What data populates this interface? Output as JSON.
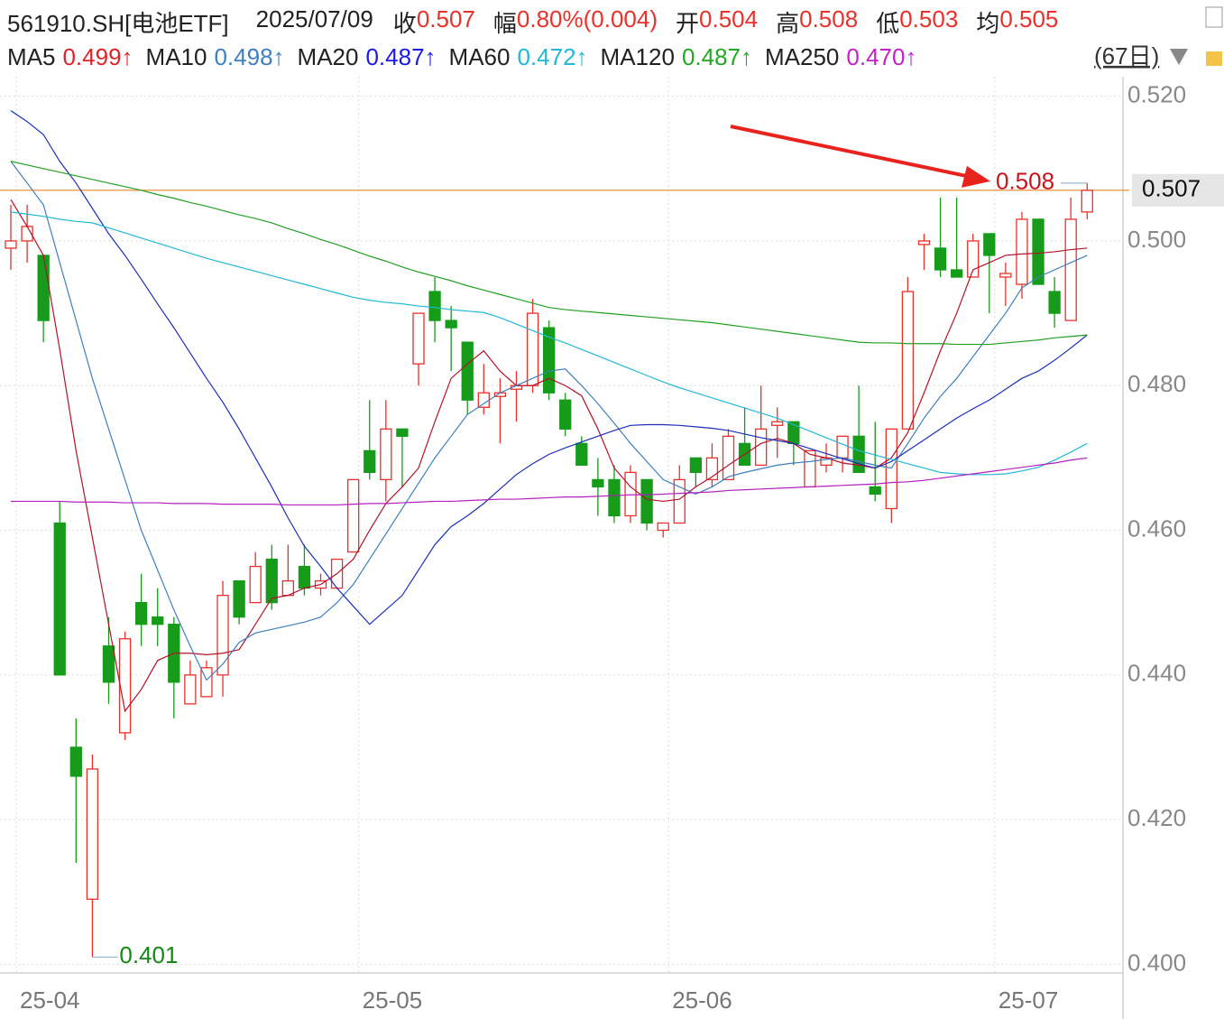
{
  "chart_data": {
    "type": "candlestick",
    "header": {
      "code": "561910.SH[电池ETF]",
      "date": "2025/07/09",
      "quote": [
        {
          "label": "收",
          "value": "0.507"
        },
        {
          "label": "幅",
          "value": "0.80%(0.004)"
        },
        {
          "label": "开",
          "value": "0.504"
        },
        {
          "label": "高",
          "value": "0.508"
        },
        {
          "label": "低",
          "value": "0.503"
        },
        {
          "label": "均",
          "value": "0.505"
        }
      ]
    },
    "period": "(67日)",
    "up_color": "#e8312a",
    "down_color": "#169b1a",
    "grid": true,
    "ylim": [
      0.3988,
      0.5227
    ],
    "yticks": [
      {
        "value": 0.4,
        "label": "0.400"
      },
      {
        "value": 0.42,
        "label": "0.420"
      },
      {
        "value": 0.44,
        "label": "0.440"
      },
      {
        "value": 0.46,
        "label": "0.460"
      },
      {
        "value": 0.48,
        "label": "0.480"
      },
      {
        "value": 0.5,
        "label": "0.500"
      },
      {
        "value": 0.52,
        "label": "0.520"
      }
    ],
    "categories": [
      "25-04",
      null,
      null,
      null,
      null,
      null,
      null,
      null,
      null,
      null,
      null,
      null,
      null,
      null,
      null,
      null,
      null,
      null,
      null,
      null,
      null,
      "25-05",
      null,
      null,
      null,
      null,
      null,
      null,
      null,
      null,
      null,
      null,
      null,
      null,
      null,
      null,
      null,
      null,
      null,
      null,
      "25-06",
      null,
      null,
      null,
      null,
      null,
      null,
      null,
      null,
      null,
      null,
      null,
      null,
      null,
      null,
      null,
      null,
      null,
      null,
      null,
      "25-07",
      null,
      null,
      null,
      null,
      null,
      null
    ],
    "ohlc": [
      [
        0.499,
        0.505,
        0.496,
        0.5
      ],
      [
        0.5,
        0.505,
        0.497,
        0.502
      ],
      [
        0.498,
        0.498,
        0.486,
        0.489
      ],
      [
        0.461,
        0.464,
        0.44,
        0.44
      ],
      [
        0.43,
        0.434,
        0.414,
        0.426
      ],
      [
        0.409,
        0.429,
        0.401,
        0.427
      ],
      [
        0.444,
        0.448,
        0.436,
        0.439
      ],
      [
        0.432,
        0.446,
        0.431,
        0.445
      ],
      [
        0.45,
        0.454,
        0.444,
        0.447
      ],
      [
        0.448,
        0.452,
        0.444,
        0.447
      ],
      [
        0.447,
        0.448,
        0.434,
        0.439
      ],
      [
        0.436,
        0.442,
        0.436,
        0.44
      ],
      [
        0.437,
        0.442,
        0.437,
        0.441
      ],
      [
        0.44,
        0.453,
        0.437,
        0.451
      ],
      [
        0.453,
        0.453,
        0.447,
        0.448
      ],
      [
        0.45,
        0.457,
        0.45,
        0.455
      ],
      [
        0.456,
        0.458,
        0.449,
        0.45
      ],
      [
        0.451,
        0.458,
        0.451,
        0.453
      ],
      [
        0.455,
        0.458,
        0.451,
        0.452
      ],
      [
        0.452,
        0.454,
        0.451,
        0.453
      ],
      [
        0.452,
        0.456,
        0.452,
        0.456
      ],
      [
        0.457,
        0.467,
        0.457,
        0.467
      ],
      [
        0.471,
        0.478,
        0.467,
        0.468
      ],
      [
        0.467,
        0.478,
        0.464,
        0.474
      ],
      [
        0.474,
        0.474,
        0.466,
        0.473
      ],
      [
        0.483,
        0.49,
        0.48,
        0.49
      ],
      [
        0.493,
        0.495,
        0.486,
        0.489
      ],
      [
        0.489,
        0.491,
        0.482,
        0.488
      ],
      [
        0.486,
        0.486,
        0.476,
        0.478
      ],
      [
        0.477,
        0.483,
        0.476,
        0.479
      ],
      [
        0.4785,
        0.481,
        0.472,
        0.479
      ],
      [
        0.4795,
        0.482,
        0.475,
        0.48
      ],
      [
        0.48,
        0.492,
        0.479,
        0.49
      ],
      [
        0.488,
        0.489,
        0.478,
        0.479
      ],
      [
        0.478,
        0.479,
        0.473,
        0.474
      ],
      [
        0.472,
        0.473,
        0.469,
        0.469
      ],
      [
        0.467,
        0.47,
        0.462,
        0.466
      ],
      [
        0.467,
        0.469,
        0.461,
        0.462
      ],
      [
        0.462,
        0.469,
        0.461,
        0.468
      ],
      [
        0.467,
        0.467,
        0.46,
        0.461
      ],
      [
        0.46,
        0.461,
        0.459,
        0.461
      ],
      [
        0.461,
        0.469,
        0.461,
        0.467
      ],
      [
        0.47,
        0.47,
        0.466,
        0.468
      ],
      [
        0.467,
        0.472,
        0.466,
        0.47
      ],
      [
        0.467,
        0.474,
        0.467,
        0.473
      ],
      [
        0.472,
        0.477,
        0.469,
        0.469
      ],
      [
        0.469,
        0.48,
        0.469,
        0.474
      ],
      [
        0.4745,
        0.477,
        0.47,
        0.475
      ],
      [
        0.475,
        0.475,
        0.469,
        0.472
      ],
      [
        0.466,
        0.471,
        0.466,
        0.471
      ],
      [
        0.469,
        0.472,
        0.468,
        0.47
      ],
      [
        0.47,
        0.473,
        0.468,
        0.473
      ],
      [
        0.473,
        0.48,
        0.468,
        0.468
      ],
      [
        0.466,
        0.475,
        0.464,
        0.465
      ],
      [
        0.463,
        0.474,
        0.461,
        0.474
      ],
      [
        0.474,
        0.495,
        0.474,
        0.493
      ],
      [
        0.4995,
        0.501,
        0.496,
        0.5
      ],
      [
        0.499,
        0.506,
        0.495,
        0.496
      ],
      [
        0.496,
        0.506,
        0.495,
        0.495
      ],
      [
        0.495,
        0.501,
        0.495,
        0.5
      ],
      [
        0.501,
        0.501,
        0.49,
        0.498
      ],
      [
        0.495,
        0.497,
        0.491,
        0.4955
      ],
      [
        0.494,
        0.504,
        0.492,
        0.503
      ],
      [
        0.503,
        0.503,
        0.494,
        0.494
      ],
      [
        0.493,
        0.495,
        0.488,
        0.49
      ],
      [
        0.489,
        0.506,
        0.489,
        0.503
      ],
      [
        0.504,
        0.508,
        0.503,
        0.507
      ]
    ],
    "series": [
      {
        "name": "MA5",
        "legend_value": "0.499↑",
        "color": "#b3122a",
        "text_color": "#e0222a",
        "values": [
          0.5057,
          0.502,
          0.498,
          0.485,
          0.471,
          0.459,
          0.447,
          0.435,
          0.438,
          0.442,
          0.443,
          0.443,
          0.4428,
          0.443,
          0.4435,
          0.447,
          0.4506,
          0.451,
          0.452,
          0.4525,
          0.454,
          0.456,
          0.46,
          0.4637,
          0.466,
          0.4686,
          0.475,
          0.481,
          0.483,
          0.4848,
          0.482,
          0.48,
          0.48,
          0.481,
          0.48,
          0.4786,
          0.474,
          0.4686,
          0.466,
          0.4643,
          0.464,
          0.4643,
          0.466,
          0.4674,
          0.469,
          0.4705,
          0.472,
          0.4727,
          0.472,
          0.4705,
          0.47,
          0.4693,
          0.469,
          0.4686,
          0.47,
          0.4735,
          0.479,
          0.4848,
          0.49,
          0.496,
          0.497,
          0.498,
          0.4982,
          0.4983,
          0.4985,
          0.4988,
          0.499
        ]
      },
      {
        "name": "MA10",
        "legend_value": "0.498↑",
        "color": "#3f7fbf",
        "text_color": "#3f7fbf",
        "values": [
          0.511,
          0.508,
          0.505,
          0.497,
          0.489,
          0.481,
          0.474,
          0.467,
          0.46,
          0.4545,
          0.449,
          0.444,
          0.4393,
          0.4415,
          0.4445,
          0.4458,
          0.4463,
          0.4468,
          0.4473,
          0.448,
          0.45,
          0.4525,
          0.456,
          0.4595,
          0.463,
          0.4665,
          0.47,
          0.473,
          0.476,
          0.4775,
          0.479,
          0.48,
          0.481,
          0.482,
          0.4823,
          0.48,
          0.4775,
          0.4748,
          0.472,
          0.4695,
          0.467,
          0.466,
          0.465,
          0.466,
          0.4674,
          0.468,
          0.4685,
          0.469,
          0.4693,
          0.4695,
          0.4698,
          0.47,
          0.4695,
          0.469,
          0.4686,
          0.472,
          0.4755,
          0.4785,
          0.481,
          0.484,
          0.487,
          0.49,
          0.4935,
          0.495,
          0.496,
          0.497,
          0.498
        ]
      },
      {
        "name": "MA20",
        "legend_value": "0.487↑",
        "color": "#1a2fb8",
        "text_color": "#1a1aee",
        "values": [
          0.518,
          0.5165,
          0.5147,
          0.511,
          0.508,
          0.5045,
          0.501,
          0.498,
          0.4947,
          0.4913,
          0.488,
          0.4845,
          0.481,
          0.4777,
          0.474,
          0.47,
          0.466,
          0.4617,
          0.4578,
          0.455,
          0.452,
          0.4495,
          0.447,
          0.449,
          0.451,
          0.4545,
          0.458,
          0.4605,
          0.462,
          0.4637,
          0.4657,
          0.4677,
          0.4692,
          0.4705,
          0.4714,
          0.4722,
          0.473,
          0.4738,
          0.4745,
          0.4746,
          0.4746,
          0.4745,
          0.4743,
          0.4741,
          0.4738,
          0.4733,
          0.4728,
          0.4724,
          0.472,
          0.4713,
          0.4706,
          0.4699,
          0.4692,
          0.4686,
          0.4695,
          0.471,
          0.4725,
          0.474,
          0.4755,
          0.4768,
          0.478,
          0.4795,
          0.481,
          0.482,
          0.4835,
          0.4852,
          0.487
        ]
      },
      {
        "name": "MA60",
        "legend_value": "0.472↑",
        "color": "#22b8d6",
        "text_color": "#22b8d6",
        "values": [
          0.504,
          0.5037,
          0.5034,
          0.503,
          0.5027,
          0.5025,
          0.5018,
          0.5011,
          0.5004,
          0.4997,
          0.499,
          0.4983,
          0.4976,
          0.497,
          0.4964,
          0.4958,
          0.4952,
          0.4946,
          0.494,
          0.4934,
          0.4928,
          0.4922,
          0.4918,
          0.4915,
          0.4913,
          0.491,
          0.4908,
          0.4905,
          0.4903,
          0.4901,
          0.4894,
          0.4885,
          0.4876,
          0.4867,
          0.4859,
          0.485,
          0.4841,
          0.4832,
          0.4823,
          0.4814,
          0.4805,
          0.4797,
          0.479,
          0.4783,
          0.4776,
          0.4769,
          0.4762,
          0.4755,
          0.4746,
          0.4737,
          0.4728,
          0.4719,
          0.471,
          0.4704,
          0.4698,
          0.4692,
          0.4686,
          0.468,
          0.4678,
          0.4677,
          0.4677,
          0.4678,
          0.4682,
          0.4687,
          0.4697,
          0.4708,
          0.472
        ]
      },
      {
        "name": "MA120",
        "legend_value": "0.487↑",
        "color": "#23a023",
        "text_color": "#23a823",
        "values": [
          0.511,
          0.5105,
          0.51,
          0.5095,
          0.509,
          0.5085,
          0.508,
          0.5075,
          0.507,
          0.5064,
          0.5059,
          0.5053,
          0.5048,
          0.5042,
          0.5036,
          0.5031,
          0.5025,
          0.5017,
          0.501,
          0.5002,
          0.4995,
          0.4987,
          0.4979,
          0.4972,
          0.4964,
          0.4957,
          0.4951,
          0.4945,
          0.4938,
          0.4932,
          0.4926,
          0.492,
          0.4914,
          0.4908,
          0.4905,
          0.4903,
          0.4901,
          0.4899,
          0.4897,
          0.4895,
          0.4893,
          0.4891,
          0.4889,
          0.4887,
          0.4884,
          0.4881,
          0.4878,
          0.4875,
          0.4872,
          0.4869,
          0.4866,
          0.4863,
          0.486,
          0.4859,
          0.4859,
          0.4858,
          0.4858,
          0.4858,
          0.4857,
          0.4857,
          0.4857,
          0.4859,
          0.4861,
          0.4863,
          0.4866,
          0.4868,
          0.487
        ]
      },
      {
        "name": "MA250",
        "legend_value": "0.470↑",
        "color": "#b51fc0",
        "text_color": "#c81ecb",
        "values": [
          0.464,
          0.464,
          0.464,
          0.464,
          0.4639,
          0.4639,
          0.4639,
          0.4638,
          0.4638,
          0.4638,
          0.4637,
          0.4637,
          0.4637,
          0.4636,
          0.4636,
          0.4636,
          0.4636,
          0.4635,
          0.4635,
          0.4635,
          0.4635,
          0.4636,
          0.4637,
          0.4637,
          0.4638,
          0.4639,
          0.464,
          0.464,
          0.4641,
          0.4642,
          0.4643,
          0.4643,
          0.4644,
          0.4645,
          0.4646,
          0.4646,
          0.4647,
          0.4648,
          0.4649,
          0.4649,
          0.465,
          0.4651,
          0.4652,
          0.4653,
          0.4655,
          0.4656,
          0.4657,
          0.4658,
          0.4659,
          0.466,
          0.4661,
          0.4662,
          0.4663,
          0.4664,
          0.4666,
          0.4667,
          0.4669,
          0.4672,
          0.4675,
          0.4678,
          0.4681,
          0.4684,
          0.4687,
          0.469,
          0.4693,
          0.4697,
          0.47
        ]
      }
    ],
    "last_price": 0.507,
    "last_price_color": "#e8862a",
    "max_marker": {
      "value": 0.508,
      "index": 66,
      "color": "#c8141e"
    },
    "min_marker": {
      "value": 0.401,
      "index": 5,
      "color": "#138a13"
    }
  }
}
